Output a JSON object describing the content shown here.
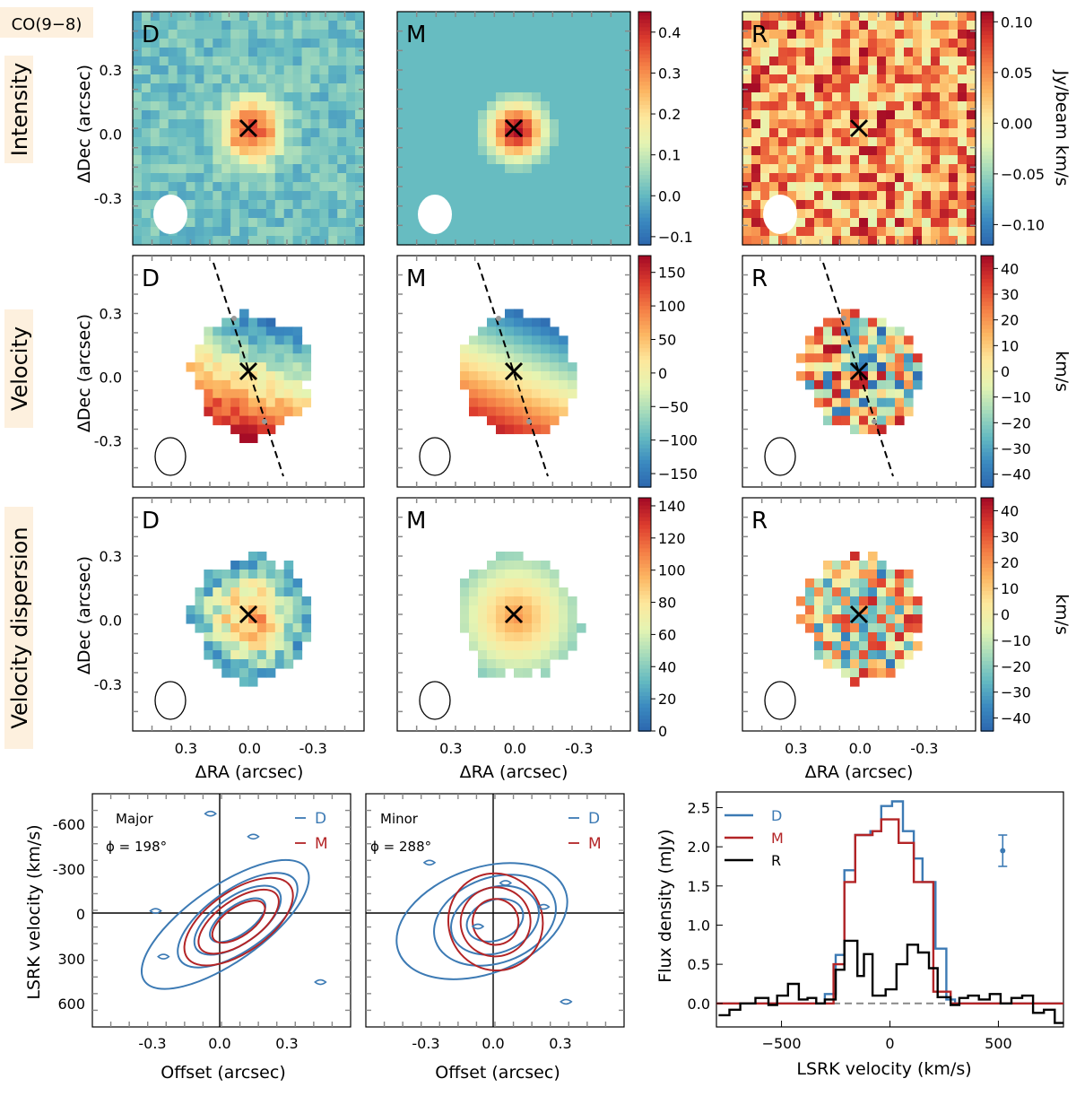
{
  "figure_tag": "CO(9−8)",
  "row_labels": [
    "Intensity",
    "Velocity",
    "Velocity dispersion"
  ],
  "panel_letters": [
    "D",
    "M",
    "R"
  ],
  "map_axes": {
    "ylabel": "ΔDec (arcsec)",
    "xlabel": "ΔRA (arcsec)",
    "yticks": [
      "0.3",
      "0.0",
      "-0.3"
    ],
    "xticks": [
      "0.3",
      "0.0",
      "-0.3"
    ]
  },
  "colors": {
    "D": "#3c7ab4",
    "M": "#b32426",
    "R": "#000000",
    "zero_line": "#888888",
    "cmap": [
      "#2b64ad",
      "#3a89c0",
      "#64bac1",
      "#a6dbbb",
      "#e5f4b2",
      "#fde79c",
      "#fcb662",
      "#f47d45",
      "#dd3d2e",
      "#a60c26"
    ],
    "tag_bg": "#fdf0de"
  },
  "colorbars": [
    {
      "row": "Intensity",
      "col": "D",
      "ticks": [
        "0.4",
        "0.3",
        "0.2",
        "0.1",
        "0.0",
        "−0.1"
      ],
      "tick_values": [
        0.4,
        0.3,
        0.2,
        0.1,
        0.0,
        -0.1
      ],
      "range": [
        -0.12,
        0.45
      ],
      "label": ""
    },
    {
      "row": "Intensity",
      "col": "R",
      "ticks": [
        "0.10",
        "0.05",
        "0.00",
        "−0.05",
        "−0.10"
      ],
      "tick_values": [
        0.1,
        0.05,
        0.0,
        -0.05,
        -0.1
      ],
      "range": [
        -0.12,
        0.11
      ],
      "label": "Jy/beam km/s"
    },
    {
      "row": "Velocity",
      "col": "D",
      "ticks": [
        "150",
        "100",
        "50",
        "0",
        "−50",
        "−100",
        "−150"
      ],
      "tick_values": [
        150,
        100,
        50,
        0,
        -50,
        -100,
        -150
      ],
      "range": [
        -170,
        175
      ],
      "label": ""
    },
    {
      "row": "Velocity",
      "col": "R",
      "ticks": [
        "40",
        "30",
        "20",
        "10",
        "0",
        "−10",
        "−20",
        "−30",
        "−40"
      ],
      "tick_values": [
        40,
        30,
        20,
        10,
        0,
        -10,
        -20,
        -30,
        -40
      ],
      "range": [
        -45,
        45
      ],
      "label": "km/s"
    },
    {
      "row": "Velocity dispersion",
      "col": "D",
      "ticks": [
        "140",
        "120",
        "100",
        "80",
        "60",
        "40",
        "20",
        "0"
      ],
      "tick_values": [
        140,
        120,
        100,
        80,
        60,
        40,
        20,
        0
      ],
      "range": [
        0,
        145
      ],
      "label": ""
    },
    {
      "row": "Velocity dispersion",
      "col": "R",
      "ticks": [
        "40",
        "30",
        "20",
        "10",
        "0",
        "−10",
        "−20",
        "−30",
        "−40"
      ],
      "tick_values": [
        40,
        30,
        20,
        10,
        0,
        -10,
        -20,
        -30,
        -40
      ],
      "range": [
        -45,
        45
      ],
      "label": "km/s"
    }
  ],
  "pv_axes": {
    "ylabel": "LSRK velocity (km/s)",
    "xlabel": "Offset (arcsec)",
    "yticks": [
      "-600",
      "-300",
      "0",
      "300",
      "600"
    ],
    "xticks": [
      "-0.3",
      "0.0",
      "0.3"
    ]
  },
  "pv_panels": [
    {
      "title": "Major",
      "angle": "ϕ = 198°",
      "legend": [
        "D",
        "M"
      ]
    },
    {
      "title": "Minor",
      "angle": "ϕ = 288°",
      "legend": [
        "D",
        "M"
      ]
    }
  ],
  "chart_data": {
    "type": "line",
    "title": "",
    "xlabel": "LSRK velocity (km/s)",
    "ylabel": "Flux density (mJy)",
    "xlim": [
      -800,
      800
    ],
    "ylim": [
      -0.3,
      2.7
    ],
    "xticks": [
      "−500",
      "0",
      "500"
    ],
    "yticks": [
      "0.0",
      "0.5",
      "1.0",
      "1.5",
      "2.0",
      "2.5"
    ],
    "legend": [
      "D",
      "M",
      "R"
    ],
    "error_bar": {
      "x": 520,
      "y": 1.95,
      "err": 0.2
    },
    "series": [
      {
        "name": "D",
        "steps": [
          [
            -800,
            0
          ],
          [
            -300,
            0
          ],
          [
            -300,
            0.12
          ],
          [
            -250,
            0.12
          ],
          [
            -250,
            0.62
          ],
          [
            -210,
            0.62
          ],
          [
            -210,
            1.7
          ],
          [
            -160,
            1.7
          ],
          [
            -160,
            2.15
          ],
          [
            -90,
            2.15
          ],
          [
            -90,
            2.2
          ],
          [
            -40,
            2.2
          ],
          [
            -40,
            2.52
          ],
          [
            10,
            2.52
          ],
          [
            10,
            2.58
          ],
          [
            60,
            2.58
          ],
          [
            60,
            2.2
          ],
          [
            110,
            2.2
          ],
          [
            110,
            1.85
          ],
          [
            150,
            1.85
          ],
          [
            150,
            1.55
          ],
          [
            210,
            1.55
          ],
          [
            210,
            0.7
          ],
          [
            260,
            0.7
          ],
          [
            260,
            0.05
          ],
          [
            300,
            0.05
          ],
          [
            300,
            0
          ],
          [
            800,
            0
          ]
        ]
      },
      {
        "name": "M",
        "steps": [
          [
            -800,
            0
          ],
          [
            -260,
            0
          ],
          [
            -260,
            0.5
          ],
          [
            -210,
            0.5
          ],
          [
            -210,
            1.55
          ],
          [
            -160,
            1.55
          ],
          [
            -160,
            2.15
          ],
          [
            -80,
            2.15
          ],
          [
            -80,
            2.2
          ],
          [
            -40,
            2.2
          ],
          [
            -40,
            2.35
          ],
          [
            40,
            2.35
          ],
          [
            40,
            2.05
          ],
          [
            110,
            2.05
          ],
          [
            110,
            1.55
          ],
          [
            200,
            1.55
          ],
          [
            200,
            0.15
          ],
          [
            280,
            0.15
          ],
          [
            280,
            0
          ],
          [
            800,
            0
          ]
        ]
      },
      {
        "name": "R",
        "steps": [
          [
            -790,
            -0.15
          ],
          [
            -740,
            -0.15
          ],
          [
            -740,
            -0.08
          ],
          [
            -690,
            -0.08
          ],
          [
            -690,
            0.0
          ],
          [
            -620,
            0.0
          ],
          [
            -620,
            0.07
          ],
          [
            -560,
            0.07
          ],
          [
            -560,
            -0.02
          ],
          [
            -520,
            -0.02
          ],
          [
            -520,
            0.1
          ],
          [
            -470,
            0.1
          ],
          [
            -470,
            0.25
          ],
          [
            -420,
            0.25
          ],
          [
            -420,
            0.05
          ],
          [
            -380,
            0.05
          ],
          [
            -380,
            0.07
          ],
          [
            -340,
            0.07
          ],
          [
            -340,
            0.0
          ],
          [
            -300,
            0.0
          ],
          [
            -300,
            0.05
          ],
          [
            -250,
            0.05
          ],
          [
            -250,
            0.43
          ],
          [
            -210,
            0.43
          ],
          [
            -210,
            0.8
          ],
          [
            -150,
            0.8
          ],
          [
            -150,
            0.35
          ],
          [
            -120,
            0.35
          ],
          [
            -120,
            0.63
          ],
          [
            -80,
            0.63
          ],
          [
            -80,
            0.1
          ],
          [
            -20,
            0.1
          ],
          [
            -20,
            0.18
          ],
          [
            30,
            0.18
          ],
          [
            30,
            0.5
          ],
          [
            80,
            0.5
          ],
          [
            80,
            0.75
          ],
          [
            130,
            0.75
          ],
          [
            130,
            0.65
          ],
          [
            180,
            0.65
          ],
          [
            180,
            0.45
          ],
          [
            220,
            0.45
          ],
          [
            220,
            0.08
          ],
          [
            280,
            0.08
          ],
          [
            280,
            -0.02
          ],
          [
            320,
            -0.02
          ],
          [
            320,
            0.07
          ],
          [
            360,
            0.07
          ],
          [
            360,
            0.1
          ],
          [
            410,
            0.1
          ],
          [
            410,
            0.05
          ],
          [
            460,
            0.05
          ],
          [
            460,
            0.12
          ],
          [
            510,
            0.12
          ],
          [
            510,
            0.0
          ],
          [
            560,
            0.0
          ],
          [
            560,
            0.07
          ],
          [
            610,
            0.07
          ],
          [
            610,
            0.1
          ],
          [
            660,
            0.1
          ],
          [
            660,
            -0.12
          ],
          [
            710,
            -0.12
          ],
          [
            710,
            -0.08
          ],
          [
            760,
            -0.08
          ],
          [
            760,
            -0.25
          ],
          [
            800,
            -0.25
          ]
        ]
      }
    ]
  }
}
